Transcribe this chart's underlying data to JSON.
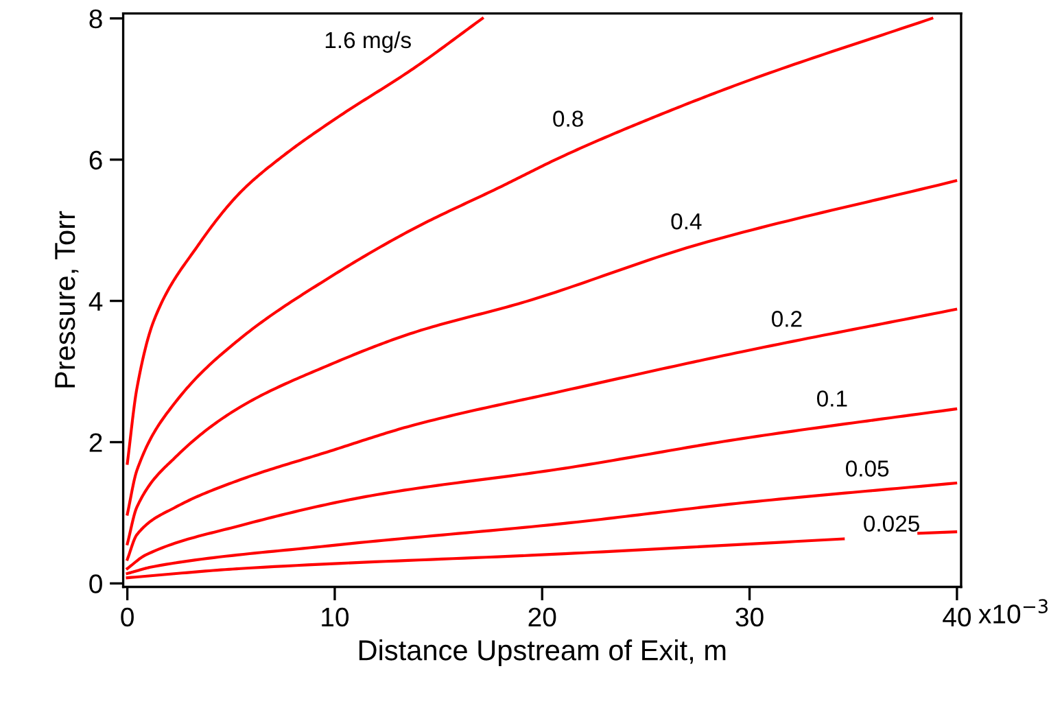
{
  "chart_data": {
    "type": "line",
    "xlabel": "Distance Upstream of Exit, m",
    "ylabel": "Pressure, Torr",
    "xlim": [
      -0.2,
      40.2
    ],
    "ylim": [
      -0.05,
      8.07
    ],
    "xticks": [
      0,
      10,
      20,
      30,
      40
    ],
    "annotations": [
      "x10$^{−3}$"
    ],
    "yticks": [
      0,
      2,
      4,
      6,
      8
    ],
    "grid": false,
    "legend": false,
    "marker": "none",
    "line_style": "solid",
    "series": [
      {
        "name": "1.6 mg/s",
        "color": "#ff0000",
        "x": [
          0,
          0.46,
          1.29,
          3.37,
          5.46,
          7.54,
          10.04,
          13.79,
          17.12
        ],
        "values": [
          1.7,
          2.76,
          3.73,
          4.77,
          5.54,
          6.06,
          6.58,
          7.29,
          8.0
        ]
      },
      {
        "name": "0.8",
        "color": "#ff0000",
        "x": [
          0,
          0.46,
          2.33,
          5.46,
          9.63,
          13.79,
          17.96,
          21.08,
          25.46,
          30.04,
          38.79
        ],
        "values": [
          0.98,
          1.6,
          2.57,
          3.47,
          4.31,
          5.02,
          5.61,
          6.06,
          6.61,
          7.13,
          8.0
        ]
      },
      {
        "name": "0.4",
        "color": "#ff0000",
        "x": [
          0,
          0.46,
          2.33,
          5.46,
          9.63,
          13.79,
          19.21,
          27.54,
          39.94
        ],
        "values": [
          0.56,
          1.08,
          1.79,
          2.5,
          3.08,
          3.55,
          3.99,
          4.8,
          5.7
        ]
      },
      {
        "name": "0.2",
        "color": "#ff0000",
        "x": [
          0,
          0.46,
          2.33,
          5.46,
          9.63,
          13.79,
          21.08,
          29.63,
          39.94
        ],
        "values": [
          0.34,
          0.69,
          1.08,
          1.47,
          1.86,
          2.24,
          2.73,
          3.28,
          3.88
        ]
      },
      {
        "name": "0.1",
        "color": "#ff0000",
        "x": [
          0,
          0.87,
          5.46,
          11.71,
          21.08,
          29.63,
          39.94
        ],
        "values": [
          0.21,
          0.4,
          0.82,
          1.24,
          1.63,
          2.05,
          2.47
        ]
      },
      {
        "name": "0.05",
        "color": "#ff0000",
        "x": [
          0,
          1.29,
          9.63,
          21.08,
          29.63,
          39.94
        ],
        "values": [
          0.14,
          0.24,
          0.53,
          0.85,
          1.14,
          1.42
        ]
      },
      {
        "name": "0.025",
        "color": "#ff0000",
        "x": [
          0,
          5.46,
          21.08,
          34.52,
          36.34,
          38.16,
          39.94
        ],
        "values": [
          0.08,
          0.21,
          0.42,
          0.63,
          null,
          0.71,
          0.73
        ]
      }
    ]
  }
}
